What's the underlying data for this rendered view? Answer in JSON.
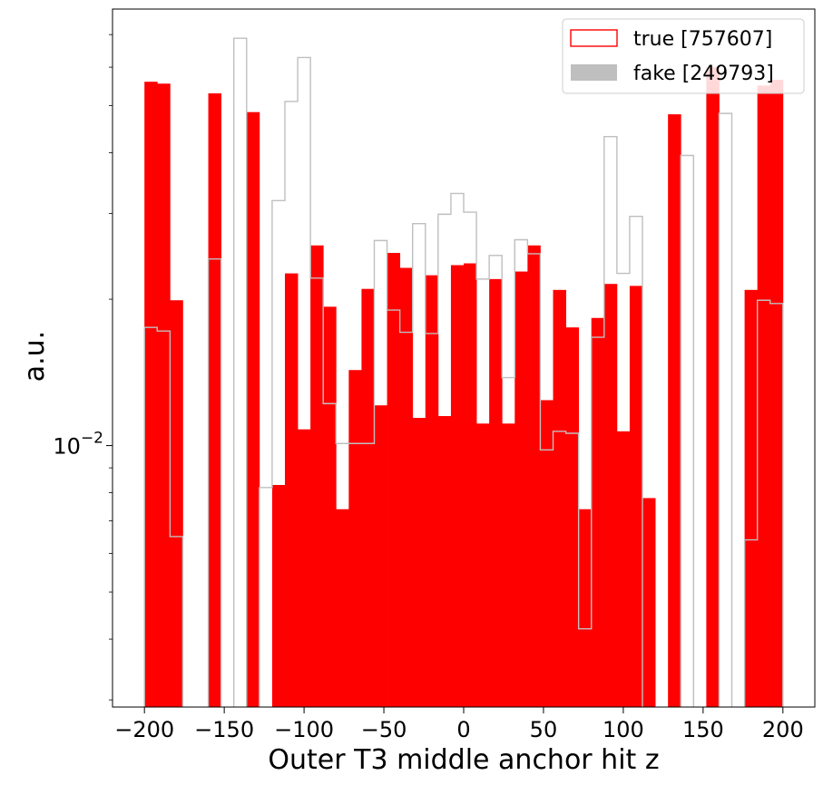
{
  "chart_data": {
    "type": "histogram",
    "xlabel": "Outer T3 middle anchor hit z",
    "ylabel": "a.u.",
    "xlim": [
      -220,
      220
    ],
    "ylim": [
      0.0029,
      0.079
    ],
    "yscale": "log",
    "x_ticks": [
      -200,
      -150,
      -100,
      -50,
      0,
      50,
      100,
      150,
      200
    ],
    "x_tick_labels": [
      "−200",
      "−150",
      "−100",
      "−50",
      "0",
      "50",
      "100",
      "150",
      "200"
    ],
    "y_tick_label": {
      "base": "10",
      "exp": "−2",
      "value": 0.01
    },
    "bin_edges": [
      -200,
      -192,
      -184,
      -176,
      -168,
      -160,
      -152,
      -144,
      -136,
      -128,
      -120,
      -112,
      -104,
      -96,
      -88,
      -80,
      -72,
      -64,
      -56,
      -48,
      -40,
      -32,
      -24,
      -16,
      -8,
      0,
      8,
      16,
      24,
      32,
      40,
      48,
      56,
      64,
      72,
      80,
      88,
      96,
      104,
      112,
      120,
      128,
      136,
      144,
      152,
      160,
      168,
      176,
      184,
      192,
      200
    ],
    "series": [
      {
        "name": "fake [249793]",
        "style": "filled",
        "color": "#bfbfbf",
        "values": [
          0.0175,
          0.0172,
          0.0065,
          0.0025,
          0.0025,
          0.0242,
          0.0025,
          0.0688,
          0.0025,
          0.0082,
          0.0319,
          0.051,
          0.0628,
          0.0221,
          0.0122,
          0.0101,
          0.0101,
          0.0101,
          0.0264,
          0.019,
          0.0171,
          0.0286,
          0.017,
          0.0299,
          0.033,
          0.0302,
          0.022,
          0.0246,
          0.0138,
          0.0265,
          0.0248,
          0.0098,
          0.0107,
          0.0106,
          0.0042,
          0.0167,
          0.0432,
          0.0226,
          0.0296,
          0.0025,
          0.0025,
          0.0025,
          0.0395,
          0.0025,
          0.0025,
          0.0482,
          0.0025,
          0.0064,
          0.0199,
          0.0196
        ]
      },
      {
        "name": "true [757607]",
        "style": "step",
        "color": "#ff0000",
        "values": [
          0.056,
          0.0555,
          0.0199,
          0.0025,
          0.0025,
          0.053,
          0.0025,
          0.0025,
          0.0485,
          0.0025,
          0.0083,
          0.0226,
          0.0108,
          0.0258,
          0.0193,
          0.0074,
          0.0143,
          0.021,
          0.0121,
          0.0249,
          0.0232,
          0.0114,
          0.0224,
          0.0115,
          0.0235,
          0.0237,
          0.0111,
          0.022,
          0.0111,
          0.0228,
          0.0258,
          0.0124,
          0.0209,
          0.0175,
          0.0074,
          0.0183,
          0.0215,
          0.0107,
          0.0213,
          0.0078,
          0.0025,
          0.048,
          0.0025,
          0.0025,
          0.06,
          0.0025,
          0.0025,
          0.0209,
          0.055,
          0.0565
        ]
      }
    ],
    "legend": {
      "placement": "top-right",
      "entries": [
        {
          "label": "true [757607]",
          "style": "step",
          "color": "#ff0000"
        },
        {
          "label": "fake [249793]",
          "style": "filled",
          "color": "#bfbfbf"
        }
      ]
    }
  }
}
